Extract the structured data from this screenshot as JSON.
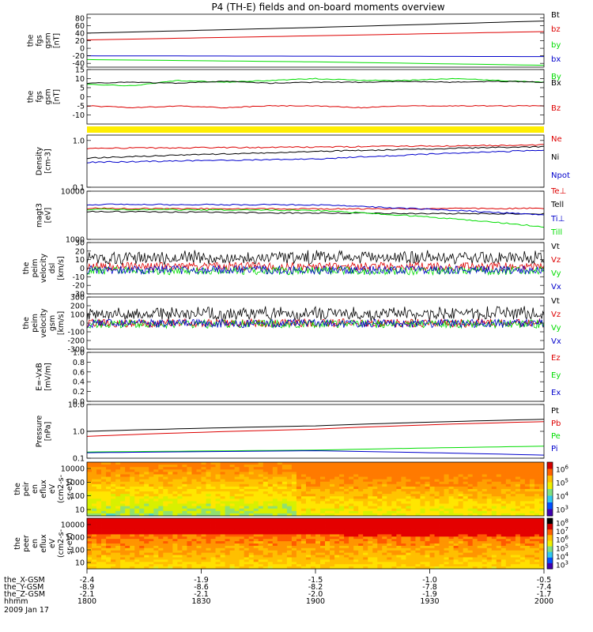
{
  "title": "P4 (TH-E) fields and on-board moments overview",
  "colors": {
    "black": "#000000",
    "red": "#dd0000",
    "green": "#00dd00",
    "blue": "#0000cc",
    "yellow": "#ffee00"
  },
  "chart_data": [
    {
      "type": "line",
      "ylabel": [
        "the",
        "fgs",
        "gsm",
        "[nT]"
      ],
      "ylim": [
        -50,
        90
      ],
      "yticks": [
        "80",
        "60",
        "40",
        "20",
        "0",
        "-20",
        "-40"
      ],
      "yticks_num": [
        80,
        60,
        40,
        20,
        0,
        -20,
        -40
      ],
      "series": [
        {
          "name": "Bt",
          "color": "black",
          "x": [
            0,
            0.5,
            1
          ],
          "values": [
            40,
            55,
            72
          ]
        },
        {
          "name": "bz",
          "color": "red",
          "x": [
            0,
            0.5,
            1
          ],
          "values": [
            22,
            33,
            44
          ]
        },
        {
          "name": "by",
          "color": "green",
          "x": [
            0,
            0.5,
            1
          ],
          "values": [
            -30,
            -36,
            -45
          ]
        },
        {
          "name": "bx",
          "color": "blue",
          "x": [
            0,
            0.5,
            1
          ],
          "values": [
            -20,
            -21,
            -22
          ]
        }
      ]
    },
    {
      "type": "line",
      "ylabel": [
        "the",
        "fgs",
        "gsm",
        "[nT]"
      ],
      "ylim": [
        -15,
        15
      ],
      "yticks": [
        "15",
        "10",
        "5",
        "0",
        "-5",
        "-10"
      ],
      "yticks_num": [
        15,
        10,
        5,
        0,
        -5,
        -10
      ],
      "series": [
        {
          "name": "By",
          "color": "green",
          "x": [
            0,
            0.1,
            0.2,
            0.3,
            0.4,
            0.5,
            0.6,
            0.7,
            0.8,
            0.9,
            1
          ],
          "values": [
            7,
            6,
            9,
            8,
            9,
            10,
            9,
            9,
            10,
            9,
            8
          ]
        },
        {
          "name": "Bx",
          "color": "black",
          "x": [
            0,
            0.1,
            0.2,
            0.3,
            0.4,
            0.5,
            0.6,
            0.7,
            0.8,
            0.9,
            1
          ],
          "values": [
            7.5,
            8,
            7.5,
            8.5,
            7.5,
            8,
            8,
            8.5,
            8,
            8.5,
            8
          ]
        },
        {
          "name": "Bz",
          "color": "red",
          "x": [
            0,
            0.1,
            0.2,
            0.3,
            0.4,
            0.5,
            0.6,
            0.7,
            0.8,
            0.9,
            1
          ],
          "values": [
            -5,
            -6,
            -5,
            -6,
            -5,
            -5,
            -6,
            -5,
            -5,
            -5,
            -5
          ]
        }
      ]
    },
    {
      "type": "line",
      "scale": "log",
      "ylabel": [
        "Density",
        "[cm-3]"
      ],
      "ylim": [
        0.1,
        1.3
      ],
      "yticks": [
        "1.0",
        "0.1"
      ],
      "yticks_num": [
        1.0,
        0.1
      ],
      "series": [
        {
          "name": "Ne",
          "color": "red",
          "x": [
            0,
            0.5,
            1
          ],
          "values": [
            0.68,
            0.72,
            0.8
          ]
        },
        {
          "name": "Ni",
          "color": "black",
          "x": [
            0,
            0.5,
            1
          ],
          "values": [
            0.42,
            0.58,
            0.74
          ]
        },
        {
          "name": "Npot",
          "color": "blue",
          "x": [
            0,
            0.5,
            1
          ],
          "values": [
            0.34,
            0.4,
            0.62
          ]
        }
      ]
    },
    {
      "type": "line",
      "ylabel": [
        "magt3",
        "[eV]"
      ],
      "ylim": [
        1000,
        10000
      ],
      "yticks": [
        "10000",
        "1000"
      ],
      "yticks_num": [
        10000,
        1000
      ],
      "series": [
        {
          "name": "Te⊥",
          "color": "red",
          "x": [
            0,
            0.5,
            1
          ],
          "values": [
            4400,
            4300,
            4400
          ]
        },
        {
          "name": "Tell",
          "color": "black",
          "x": [
            0,
            0.5,
            1
          ],
          "values": [
            3800,
            3500,
            3400
          ]
        },
        {
          "name": "Ti⊥",
          "color": "blue",
          "x": [
            0,
            0.5,
            1
          ],
          "values": [
            5300,
            5200,
            3200
          ]
        },
        {
          "name": "Till",
          "color": "green",
          "x": [
            0,
            0.5,
            1
          ],
          "values": [
            4200,
            4000,
            1800
          ]
        }
      ]
    },
    {
      "type": "line",
      "ylabel": [
        "the",
        "peim",
        "velocity",
        "dsl",
        "[km/s]"
      ],
      "ylim": [
        -30,
        30
      ],
      "yticks": [
        "30",
        "20",
        "10",
        "0",
        "-10",
        "-20",
        "-30"
      ],
      "yticks_num": [
        30,
        20,
        10,
        0,
        -10,
        -20,
        -30
      ],
      "series": [
        {
          "name": "Vt",
          "color": "black",
          "x": [
            0,
            1
          ],
          "values": [
            10,
            10
          ]
        },
        {
          "name": "Vz",
          "color": "red",
          "x": [
            0,
            1
          ],
          "values": [
            2,
            2
          ]
        },
        {
          "name": "Vy",
          "color": "green",
          "x": [
            0,
            1
          ],
          "values": [
            -3,
            -3
          ]
        },
        {
          "name": "Vx",
          "color": "blue",
          "x": [
            0,
            1
          ],
          "values": [
            -2,
            -2
          ]
        }
      ]
    },
    {
      "type": "line",
      "ylabel": [
        "the",
        "peim",
        "velocity",
        "gsm",
        "[km/s]"
      ],
      "ylim": [
        -300,
        300
      ],
      "yticks": [
        "300",
        "200",
        "100",
        "0",
        "-100",
        "-200",
        "-300"
      ],
      "yticks_num": [
        300,
        200,
        100,
        0,
        -100,
        -200,
        -300
      ],
      "series": [
        {
          "name": "Vt",
          "color": "black",
          "x": [
            0,
            1
          ],
          "values": [
            80,
            80
          ]
        },
        {
          "name": "Vz",
          "color": "red",
          "x": [
            0,
            1
          ],
          "values": [
            0,
            0
          ]
        },
        {
          "name": "Vy",
          "color": "green",
          "x": [
            0,
            1
          ],
          "values": [
            -10,
            -10
          ]
        },
        {
          "name": "Vx",
          "color": "blue",
          "x": [
            0,
            1
          ],
          "values": [
            -5,
            -5
          ]
        }
      ]
    },
    {
      "type": "line",
      "ylabel": [
        "E=-VxB",
        "[mV/m]"
      ],
      "ylim": [
        0,
        1
      ],
      "yticks": [
        "1.0",
        "0.8",
        "0.6",
        "0.4",
        "0.2",
        "0.0"
      ],
      "yticks_num": [
        1,
        0.8,
        0.6,
        0.4,
        0.2,
        0
      ],
      "series": [
        {
          "name": "Ez",
          "color": "red",
          "x": [],
          "values": []
        },
        {
          "name": "Ey",
          "color": "green",
          "x": [],
          "values": []
        },
        {
          "name": "Ex",
          "color": "blue",
          "x": [],
          "values": []
        }
      ]
    },
    {
      "type": "line",
      "scale": "log",
      "ylabel": [
        "Pressure",
        "[nPa]"
      ],
      "ylim": [
        0.1,
        10
      ],
      "yticks": [
        "10.0",
        "1.0",
        "0.1"
      ],
      "yticks_num": [
        10,
        1,
        0.1
      ],
      "series": [
        {
          "name": "Pt",
          "color": "black",
          "x": [
            0,
            0.5,
            1
          ],
          "values": [
            1.0,
            1.6,
            2.8
          ]
        },
        {
          "name": "Pb",
          "color": "red",
          "x": [
            0,
            0.5,
            1
          ],
          "values": [
            0.65,
            1.2,
            2.3
          ]
        },
        {
          "name": "Pe",
          "color": "green",
          "x": [
            0,
            0.5,
            1
          ],
          "values": [
            0.17,
            0.2,
            0.28
          ]
        },
        {
          "name": "Pi",
          "color": "blue",
          "x": [
            0,
            0.5,
            1
          ],
          "values": [
            0.16,
            0.19,
            0.13
          ]
        }
      ]
    },
    {
      "type": "heatmap",
      "ylabel": [
        "the",
        "peir",
        "en",
        "eflux",
        "eV",
        "(cm2-s-",
        "sr-eV)"
      ],
      "yticks": [
        "10000",
        "1000",
        "100",
        "10"
      ],
      "colorbar": [
        "10^6",
        "10^5",
        "10^4",
        "10^3"
      ]
    },
    {
      "type": "heatmap",
      "ylabel": [
        "the",
        "peer",
        "en",
        "eflux",
        "eV",
        "(cm2-s-",
        "sr-eV)"
      ],
      "yticks": [
        "10000",
        "1000",
        "100",
        "10"
      ],
      "colorbar": [
        "10^8",
        "10^7",
        "10^6",
        "10^5",
        "10^4",
        "10^3"
      ]
    }
  ],
  "xaxis": {
    "rows": [
      {
        "label": "the_X-GSM",
        "values": [
          "-2.4",
          "-1.9",
          "-1.5",
          "-1.0",
          "-0.5"
        ]
      },
      {
        "label": "the_Y-GSM",
        "values": [
          "-8.9",
          "-8.6",
          "-8.2",
          "-7.8",
          "-7.4"
        ]
      },
      {
        "label": "the_Z-GSM",
        "values": [
          "-2.1",
          "-2.1",
          "-2.0",
          "-1.9",
          "-1.7"
        ]
      },
      {
        "label": "hhmm",
        "values": [
          "1800",
          "1830",
          "1900",
          "1930",
          "2000"
        ]
      }
    ],
    "date": "2009 Jan 17"
  }
}
